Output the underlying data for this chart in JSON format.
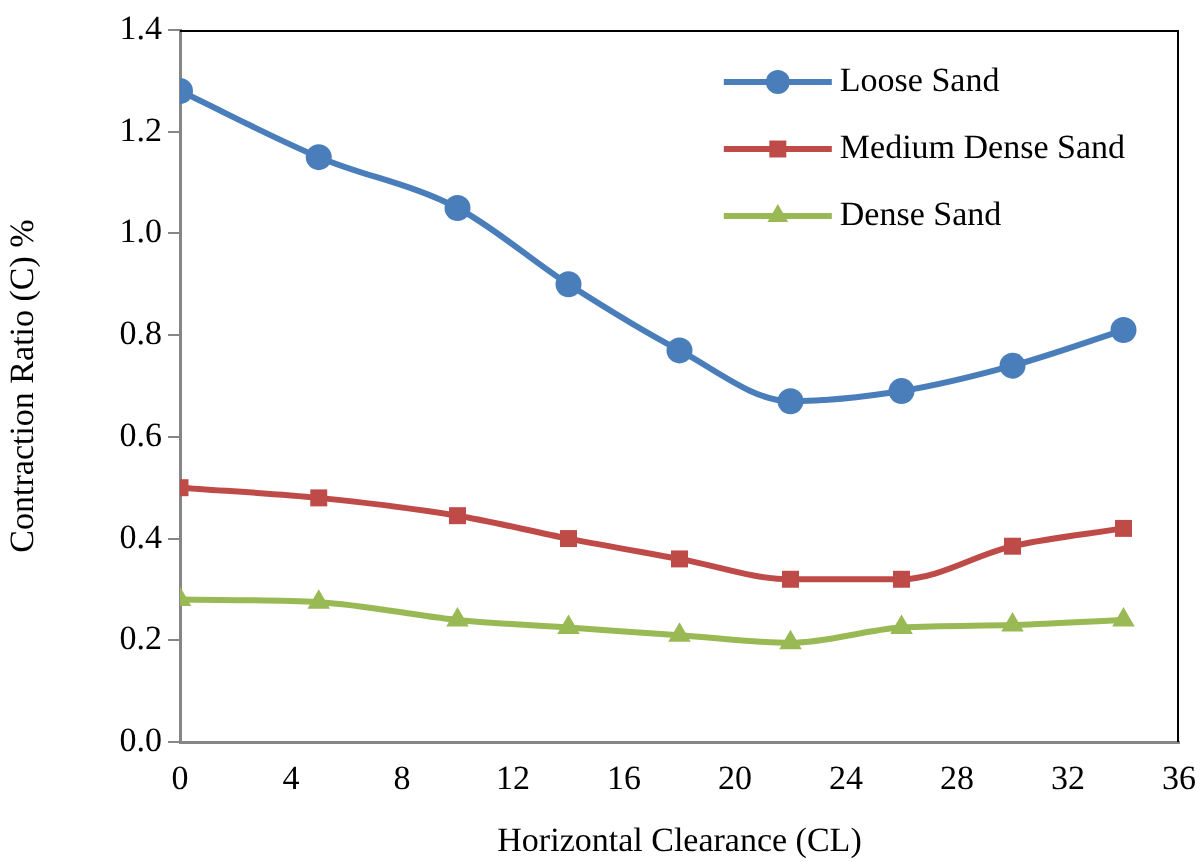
{
  "chart_data": {
    "type": "line",
    "xlabel": "Horizontal Clearance (CL)",
    "ylabel": "Contraction Ratio (C) %",
    "x": [
      0,
      5,
      10,
      14,
      18,
      22,
      26,
      30,
      34
    ],
    "series": [
      {
        "name": "Loose Sand",
        "color": "#4a7ebb",
        "marker": "circle",
        "values": [
          1.28,
          1.15,
          1.05,
          0.9,
          0.77,
          0.67,
          0.69,
          0.74,
          0.81
        ]
      },
      {
        "name": "Medium Dense Sand",
        "color": "#be4b48",
        "marker": "square",
        "values": [
          0.5,
          0.48,
          0.445,
          0.4,
          0.36,
          0.32,
          0.32,
          0.385,
          0.42
        ]
      },
      {
        "name": "Dense Sand",
        "color": "#98b954",
        "marker": "triangle",
        "values": [
          0.28,
          0.275,
          0.24,
          0.225,
          0.21,
          0.195,
          0.225,
          0.23,
          0.24
        ]
      }
    ],
    "xlim": [
      0,
      36
    ],
    "xticks": [
      0,
      4,
      8,
      12,
      16,
      20,
      24,
      28,
      32,
      36
    ],
    "ylim": [
      0,
      1.4
    ],
    "yticks": [
      {
        "value": 0,
        "label": "0.0"
      },
      {
        "value": 0.2,
        "label": "0.2"
      },
      {
        "value": 0.4,
        "label": "0.4"
      },
      {
        "value": 0.6,
        "label": "0.6"
      },
      {
        "value": 0.8,
        "label": "0.8"
      },
      {
        "value": 1,
        "label": "1.0"
      },
      {
        "value": 1.2,
        "label": "1.2"
      },
      {
        "value": 1.4,
        "label": "1.4"
      }
    ],
    "grid": false,
    "legend": "top right"
  }
}
